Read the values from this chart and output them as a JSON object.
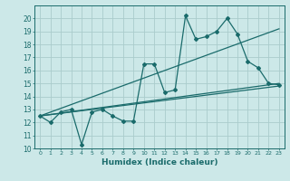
{
  "xlabel": "Humidex (Indice chaleur)",
  "background_color": "#cce8e8",
  "grid_color": "#aacccc",
  "line_color": "#1a6b6b",
  "xlim": [
    -0.5,
    23.5
  ],
  "ylim": [
    10,
    21
  ],
  "xticks": [
    0,
    1,
    2,
    3,
    4,
    5,
    6,
    7,
    8,
    9,
    10,
    11,
    12,
    13,
    14,
    15,
    16,
    17,
    18,
    19,
    20,
    21,
    22,
    23
  ],
  "yticks": [
    10,
    11,
    12,
    13,
    14,
    15,
    16,
    17,
    18,
    19,
    20
  ],
  "series1_x": [
    0,
    1,
    2,
    3,
    4,
    5,
    6,
    7,
    8,
    9,
    10,
    11,
    12,
    13,
    14,
    15,
    16,
    17,
    18,
    19,
    20,
    21,
    22,
    23
  ],
  "series1_y": [
    12.5,
    12.0,
    12.8,
    13.0,
    10.3,
    12.8,
    13.0,
    12.5,
    12.1,
    12.1,
    16.5,
    16.5,
    14.3,
    14.5,
    20.2,
    18.4,
    18.6,
    19.0,
    20.0,
    18.8,
    16.7,
    16.2,
    15.0,
    14.9
  ],
  "line2_x": [
    0,
    23
  ],
  "line2_y": [
    12.5,
    15.0
  ],
  "line3_x": [
    0,
    23
  ],
  "line3_y": [
    12.5,
    14.8
  ],
  "line4_x": [
    0,
    23
  ],
  "line4_y": [
    12.5,
    19.2
  ]
}
